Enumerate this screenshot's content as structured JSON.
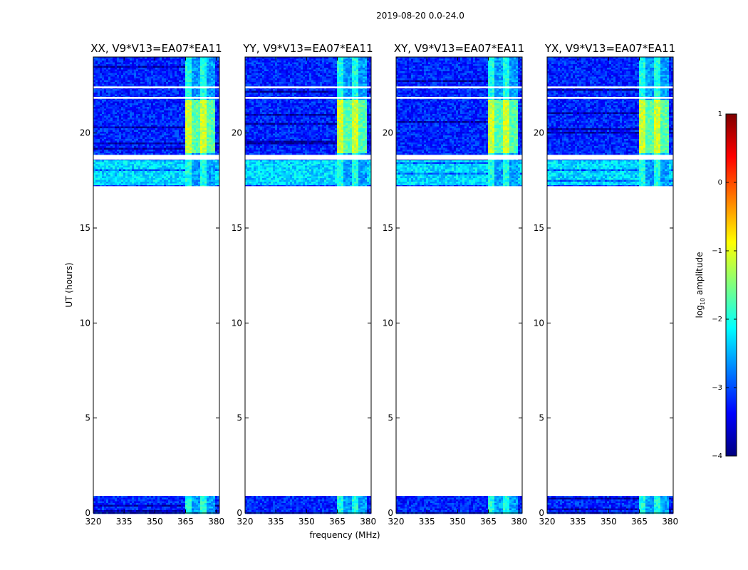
{
  "figure_title": "2019-08-20 0.0-24.0",
  "ylabel": "UT (hours)",
  "xlabel": "frequency (MHz)",
  "colorbar": {
    "label_main": "log",
    "label_sub": "10",
    "label_rest": " amplitude",
    "range": [
      -4,
      1
    ],
    "ticks": [
      1,
      0,
      -1,
      -2,
      -3,
      -4
    ],
    "tick_labels": [
      "1",
      "0",
      "−1",
      "−2",
      "−3",
      "−4"
    ],
    "colors": [
      "#00007f",
      "#0000ff",
      "#007fff",
      "#00ffff",
      "#7fff7f",
      "#ffff00",
      "#ff7f00",
      "#ff0000",
      "#7f0000"
    ]
  },
  "chart_data": [
    {
      "type": "heatmap",
      "title": "XX, V9*V13=EA07*EA11",
      "x_range_mhz": [
        320,
        381.5
      ],
      "y_range_hours": [
        0,
        24
      ],
      "xticks": [
        320,
        335,
        350,
        365,
        380
      ],
      "yticks": [
        0,
        5,
        10,
        15,
        20
      ],
      "data_hours": [
        [
          0,
          0.9
        ],
        [
          17.2,
          24
        ]
      ],
      "gaps_hours": [
        [
          0.9,
          17.2
        ],
        [
          18.6,
          18.85
        ],
        [
          22.35,
          22.45
        ],
        [
          21.8,
          21.9
        ]
      ],
      "rfi_band_mhz": [
        364,
        379
      ],
      "background_log10_amp": -3.2,
      "rfi_log10_amp": -1.3
    },
    {
      "type": "heatmap",
      "title": "YY, V9*V13=EA07*EA11",
      "x_range_mhz": [
        320,
        381.5
      ],
      "y_range_hours": [
        0,
        24
      ],
      "xticks": [
        320,
        335,
        350,
        365,
        380
      ],
      "yticks": [
        0,
        5,
        10,
        15,
        20
      ],
      "data_hours": [
        [
          0,
          0.9
        ],
        [
          17.2,
          24
        ]
      ],
      "gaps_hours": [
        [
          0.9,
          17.2
        ],
        [
          18.6,
          18.85
        ],
        [
          22.35,
          22.45
        ],
        [
          21.8,
          21.9
        ]
      ],
      "rfi_band_mhz": [
        364,
        379
      ],
      "background_log10_amp": -3.2,
      "rfi_log10_amp": -1.3
    },
    {
      "type": "heatmap",
      "title": "XY, V9*V13=EA07*EA11",
      "x_range_mhz": [
        320,
        381.5
      ],
      "y_range_hours": [
        0,
        24
      ],
      "xticks": [
        320,
        335,
        350,
        365,
        380
      ],
      "yticks": [
        0,
        5,
        10,
        15,
        20
      ],
      "data_hours": [
        [
          0,
          0.9
        ],
        [
          17.2,
          24
        ]
      ],
      "gaps_hours": [
        [
          0.9,
          17.2
        ],
        [
          18.6,
          18.85
        ],
        [
          22.35,
          22.45
        ],
        [
          21.8,
          21.9
        ]
      ],
      "rfi_band_mhz": [
        364,
        379
      ],
      "background_log10_amp": -3.2,
      "rfi_log10_amp": -1.3
    },
    {
      "type": "heatmap",
      "title": "YX, V9*V13=EA07*EA11",
      "x_range_mhz": [
        320,
        381.5
      ],
      "y_range_hours": [
        0,
        24
      ],
      "xticks": [
        320,
        335,
        350,
        365,
        380
      ],
      "yticks": [
        0,
        5,
        10,
        15,
        20
      ],
      "data_hours": [
        [
          0,
          0.9
        ],
        [
          17.2,
          24
        ]
      ],
      "gaps_hours": [
        [
          0.9,
          17.2
        ],
        [
          18.6,
          18.85
        ],
        [
          22.35,
          22.45
        ],
        [
          21.8,
          21.9
        ]
      ],
      "rfi_band_mhz": [
        364,
        379
      ],
      "background_log10_amp": -3.2,
      "rfi_log10_amp": -1.3
    }
  ]
}
